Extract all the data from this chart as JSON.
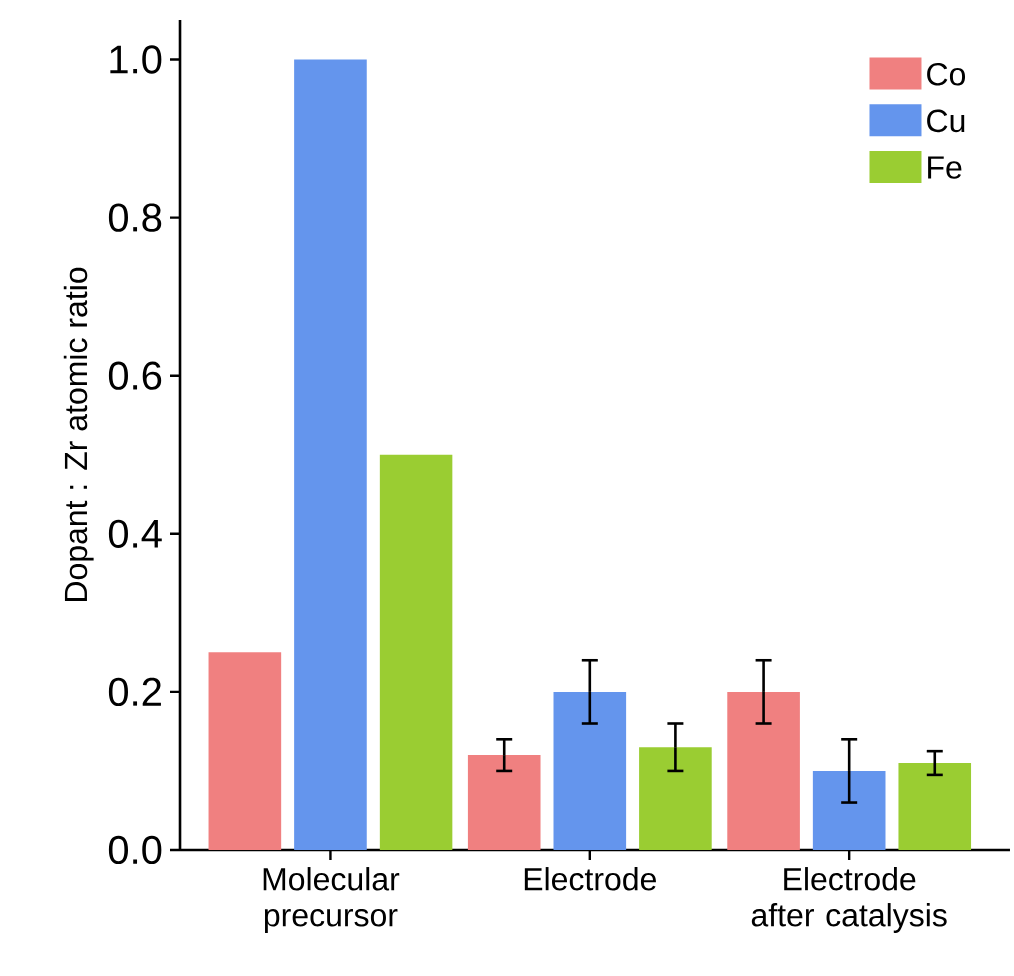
{
  "chart_data": {
    "type": "bar",
    "ylabel": "Dopant : Zr atomic ratio",
    "categories": [
      "Molecular precursor",
      "Electrode",
      "Electrode after catalysis"
    ],
    "series": [
      {
        "name": "Co",
        "color": "#f08080",
        "values": [
          0.25,
          0.12,
          0.2
        ],
        "errors": [
          null,
          0.02,
          0.04
        ]
      },
      {
        "name": "Cu",
        "color": "#6495ed",
        "values": [
          1.0,
          0.2,
          0.1
        ],
        "errors": [
          null,
          0.04,
          0.04
        ]
      },
      {
        "name": "Fe",
        "color": "#9acd32",
        "values": [
          0.5,
          0.13,
          0.11
        ],
        "errors": [
          null,
          0.03,
          0.015
        ]
      }
    ],
    "ylim": [
      0,
      1.05
    ],
    "yticks": [
      {
        "value": 0,
        "label": "0.0"
      },
      {
        "value": 0.2,
        "label": "0.2"
      },
      {
        "value": 0.4,
        "label": "0.4"
      },
      {
        "value": 0.6,
        "label": "0.6"
      },
      {
        "value": 0.8,
        "label": "0.8"
      },
      {
        "value": 1.0,
        "label": "1.0"
      }
    ],
    "legend": "top right",
    "grid": false
  }
}
